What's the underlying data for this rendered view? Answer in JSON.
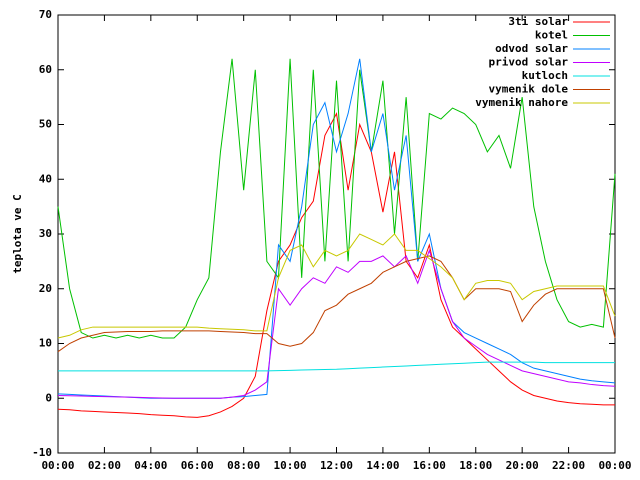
{
  "chart_data": {
    "type": "line",
    "y_label": "teplota ve C",
    "xlim": [
      0,
      24
    ],
    "xticks": [
      {
        "value": 0,
        "label": "00:00"
      },
      {
        "value": 2,
        "label": "02:00"
      },
      {
        "value": 4,
        "label": "04:00"
      },
      {
        "value": 6,
        "label": "06:00"
      },
      {
        "value": 8,
        "label": "08:00"
      },
      {
        "value": 10,
        "label": "10:00"
      },
      {
        "value": 12,
        "label": "12:00"
      },
      {
        "value": 14,
        "label": "14:00"
      },
      {
        "value": 16,
        "label": "16:00"
      },
      {
        "value": 18,
        "label": "18:00"
      },
      {
        "value": 20,
        "label": "20:00"
      },
      {
        "value": 22,
        "label": "22:00"
      },
      {
        "value": 24,
        "label": "00:00"
      }
    ],
    "ylim": [
      -10,
      70
    ],
    "yticks": [
      -10,
      0,
      10,
      20,
      30,
      40,
      50,
      60,
      70
    ],
    "legend": "top-right",
    "x": [
      0,
      0.5,
      1,
      1.5,
      2,
      2.5,
      3,
      3.5,
      4,
      4.5,
      5,
      5.5,
      6,
      6.5,
      7,
      7.5,
      8,
      8.5,
      9,
      9.5,
      10,
      10.5,
      11,
      11.5,
      12,
      12.5,
      13,
      13.5,
      14,
      14.5,
      15,
      15.5,
      16,
      16.5,
      17,
      17.5,
      18,
      18.5,
      19,
      19.5,
      20,
      20.5,
      21,
      21.5,
      22,
      22.5,
      23,
      23.5,
      24
    ],
    "series": [
      {
        "name": "3ti solar",
        "color": "#ff0000",
        "values": [
          -2,
          -2.1,
          -2.3,
          -2.4,
          -2.5,
          -2.6,
          -2.7,
          -2.8,
          -3,
          -3.1,
          -3.2,
          -3.4,
          -3.5,
          -3.2,
          -2.5,
          -1.5,
          0,
          4,
          16,
          25,
          28,
          33,
          36,
          48,
          52,
          38,
          50,
          45,
          34,
          45,
          25,
          22,
          28,
          18,
          13,
          11,
          9,
          7,
          5,
          3,
          1.5,
          0.5,
          0,
          -0.5,
          -0.8,
          -1,
          -1.1,
          -1.2,
          -1.2
        ]
      },
      {
        "name": "kotel",
        "color": "#00c000",
        "values": [
          35,
          20,
          12,
          11,
          11.5,
          11,
          11.5,
          11,
          11.5,
          11,
          11,
          13,
          18,
          22,
          45,
          62,
          38,
          60,
          25,
          22,
          62,
          22,
          60,
          25,
          58,
          25,
          60,
          45,
          58,
          30,
          55,
          25,
          52,
          51,
          53,
          52,
          50,
          45,
          48,
          42,
          55,
          35,
          25,
          18,
          14,
          13,
          13.5,
          13,
          41
        ]
      },
      {
        "name": "odvod solar",
        "color": "#0080ff",
        "values": [
          0.8,
          0.7,
          0.6,
          0.5,
          0.4,
          0.3,
          0.2,
          0.1,
          0,
          0,
          0,
          0,
          0,
          0,
          0,
          0.2,
          0.3,
          0.5,
          0.7,
          28,
          25,
          35,
          50,
          54,
          45,
          52,
          62,
          45,
          52,
          38,
          48,
          25,
          30,
          20,
          14,
          12,
          11,
          10,
          9,
          8,
          6.5,
          5.5,
          5,
          4.5,
          4,
          3.5,
          3.2,
          3,
          2.8
        ]
      },
      {
        "name": "privod solar",
        "color": "#c000ff",
        "values": [
          0.5,
          0.45,
          0.4,
          0.35,
          0.3,
          0.25,
          0.2,
          0.15,
          0.1,
          0.05,
          0,
          0,
          0,
          0,
          0,
          0.2,
          0.5,
          1.5,
          3,
          20,
          17,
          20,
          22,
          21,
          24,
          23,
          25,
          25,
          26,
          24,
          26,
          21,
          27,
          20,
          14,
          11,
          9.5,
          8,
          7,
          6,
          5,
          4.5,
          4,
          3.5,
          3,
          2.8,
          2.5,
          2.3,
          2.2
        ]
      },
      {
        "name": "kutloch",
        "color": "#00e0e0",
        "values": [
          5,
          5,
          5,
          5,
          5,
          5,
          5,
          5,
          5,
          5,
          5,
          5,
          5,
          5,
          5,
          5,
          5,
          5,
          5,
          5.05,
          5.1,
          5.15,
          5.2,
          5.25,
          5.3,
          5.4,
          5.5,
          5.6,
          5.7,
          5.8,
          5.9,
          6,
          6.1,
          6.2,
          6.3,
          6.4,
          6.5,
          6.6,
          6.6,
          6.6,
          6.6,
          6.6,
          6.5,
          6.5,
          6.5,
          6.5,
          6.5,
          6.5,
          6.5
        ]
      },
      {
        "name": "vymenik dole",
        "color": "#c04000",
        "values": [
          8.5,
          10,
          11,
          11.5,
          12,
          12.1,
          12.2,
          12.2,
          12.2,
          12.3,
          12.3,
          12.3,
          12.3,
          12.3,
          12.2,
          12.1,
          12,
          11.8,
          11.8,
          10,
          9.5,
          10,
          12,
          16,
          17,
          19,
          20,
          21,
          23,
          24,
          25,
          25.5,
          26,
          25,
          22,
          18,
          20,
          20,
          20,
          19.5,
          14,
          17,
          19,
          20,
          20,
          20,
          20,
          20,
          11
        ]
      },
      {
        "name": "vymenik nahore",
        "color": "#c8c800",
        "values": [
          11,
          11.5,
          12.5,
          13,
          13,
          13,
          13,
          13,
          13,
          13,
          13,
          13,
          13,
          12.8,
          12.7,
          12.6,
          12.5,
          12.3,
          12.3,
          22,
          27,
          28,
          24,
          27,
          26,
          27,
          30,
          29,
          28,
          30,
          27,
          27,
          25.5,
          24,
          22,
          18,
          21,
          21.5,
          21.5,
          21,
          18,
          19.5,
          20,
          20.5,
          20.5,
          20.5,
          20.5,
          20.5,
          15
        ]
      }
    ]
  }
}
